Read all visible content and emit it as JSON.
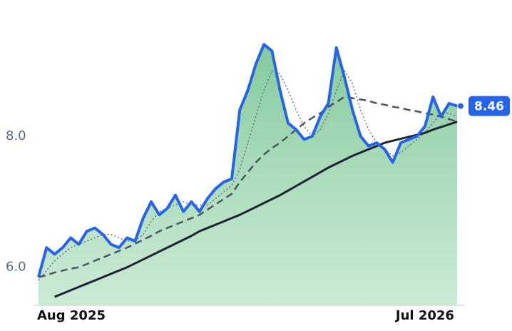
{
  "chart_data": {
    "type": "line",
    "categories": [
      "Aug 2025",
      null,
      null,
      null,
      null,
      null,
      null,
      null,
      null,
      null,
      null,
      null,
      null,
      null,
      null,
      null,
      null,
      null,
      null,
      null,
      null,
      null,
      null,
      null,
      null,
      null,
      null,
      null,
      null,
      null,
      null,
      null,
      null,
      null,
      null,
      null,
      null,
      null,
      null,
      null,
      null,
      null,
      null,
      null,
      null,
      null,
      null,
      null,
      "Jul 2026",
      null,
      null,
      null,
      null
    ],
    "ylim": [
      5.42,
      9.86
    ],
    "yticks": [
      {
        "value": 6,
        "label": "6.0"
      },
      {
        "value": 8,
        "label": "8.0"
      }
    ],
    "series": [
      {
        "color": "#2563eb",
        "values": [
          5.85,
          6.3,
          6.2,
          6.3,
          6.45,
          6.35,
          6.55,
          6.6,
          6.5,
          6.35,
          6.3,
          6.45,
          6.4,
          6.75,
          7.0,
          6.8,
          6.9,
          7.1,
          6.85,
          7.0,
          6.85,
          7.05,
          7.2,
          7.3,
          7.35,
          8.4,
          8.7,
          9.1,
          9.4,
          9.3,
          8.7,
          8.2,
          8.1,
          7.95,
          8.0,
          8.3,
          8.5,
          9.35,
          8.9,
          8.4,
          8.0,
          7.85,
          7.9,
          7.8,
          7.6,
          7.9,
          7.95,
          8.0,
          8.15,
          8.6,
          8.3,
          8.5,
          8.46
        ]
      },
      {
        "color": "#1e2235",
        "values": [
          null,
          null,
          5.55,
          5.6,
          5.65,
          5.7,
          5.75,
          5.8,
          5.85,
          5.9,
          5.95,
          6.0,
          6.06,
          6.12,
          6.18,
          6.24,
          6.3,
          6.36,
          6.42,
          6.48,
          6.55,
          6.6,
          6.65,
          6.7,
          6.75,
          6.8,
          6.86,
          6.92,
          6.98,
          7.04,
          7.1,
          7.17,
          7.24,
          7.31,
          7.38,
          7.45,
          7.52,
          7.58,
          7.64,
          7.7,
          7.75,
          7.8,
          7.85,
          7.9,
          7.93,
          7.96,
          7.99,
          8.02,
          8.05,
          8.1,
          8.14,
          8.18,
          8.22
        ]
      },
      {
        "color": "#4b5563",
        "dash": "10,6",
        "values": [
          5.85,
          5.88,
          5.92,
          5.95,
          5.98,
          6.0,
          6.05,
          6.1,
          6.15,
          6.2,
          6.25,
          6.3,
          6.36,
          6.42,
          6.48,
          6.55,
          6.6,
          6.65,
          6.7,
          6.75,
          6.8,
          6.88,
          6.96,
          7.04,
          7.12,
          7.3,
          7.45,
          7.6,
          7.72,
          7.82,
          7.9,
          8.0,
          8.1,
          8.2,
          8.28,
          8.35,
          8.45,
          8.52,
          8.6,
          8.58,
          8.56,
          8.54,
          8.5,
          8.48,
          8.45,
          8.43,
          8.4,
          8.38,
          8.35,
          8.33,
          8.3,
          8.26,
          8.22
        ]
      },
      {
        "color": "#6b7280",
        "dash": "2,3",
        "values": [
          5.8,
          5.95,
          6.1,
          6.2,
          6.3,
          6.35,
          6.4,
          6.45,
          6.5,
          6.5,
          6.45,
          6.4,
          6.4,
          6.5,
          6.7,
          6.85,
          6.9,
          6.95,
          7.0,
          6.95,
          6.95,
          6.95,
          7.05,
          7.15,
          7.25,
          7.5,
          7.9,
          8.3,
          8.7,
          9.0,
          8.95,
          8.7,
          8.4,
          8.15,
          8.0,
          8.1,
          8.35,
          8.7,
          9.0,
          8.8,
          8.4,
          8.1,
          7.9,
          7.8,
          7.7,
          7.75,
          7.85,
          7.95,
          8.05,
          8.2,
          8.35,
          8.35,
          8.3
        ]
      }
    ]
  }
}
